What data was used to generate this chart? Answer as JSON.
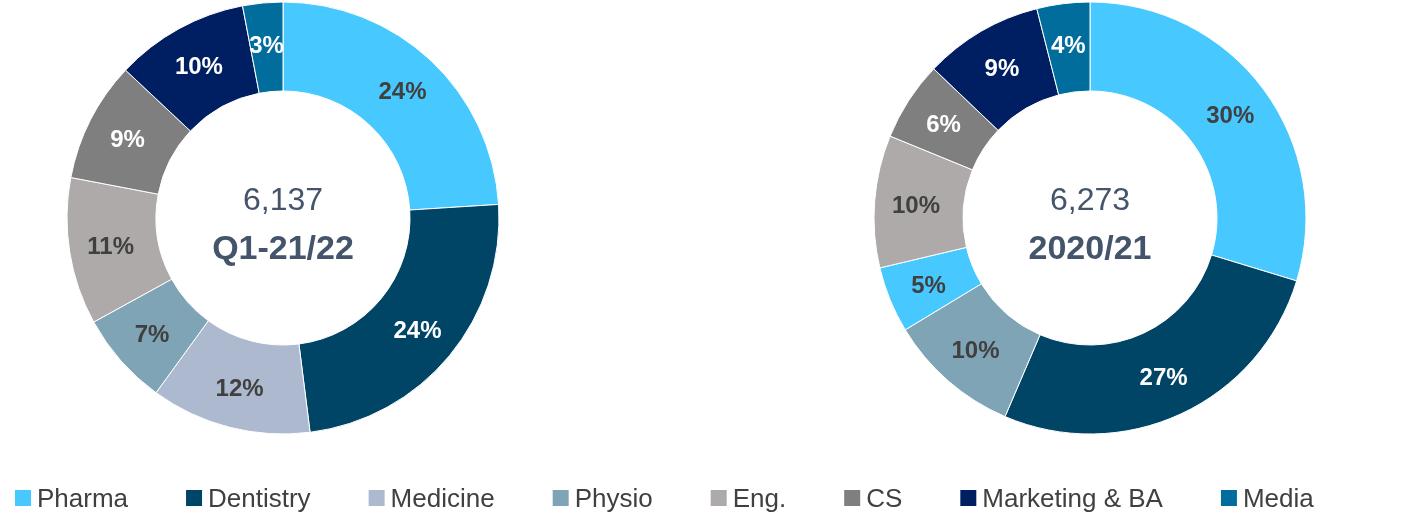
{
  "chart_data": [
    {
      "type": "donut",
      "title": "Q1-21/22",
      "annotations": [
        "6,137"
      ],
      "categories": [
        "Pharma",
        "Dentistry",
        "Medicine",
        "Physio",
        "Eng.",
        "CS",
        "Marketing & BA",
        "Media"
      ],
      "values": [
        24,
        24,
        12,
        7,
        11,
        9,
        10,
        3
      ],
      "value_labels": [
        "24%",
        "24%",
        "12%",
        "7%",
        "11%",
        "9%",
        "10%",
        "3%"
      ],
      "colors": [
        "#47c8ff",
        "#004566",
        "#adb9cf",
        "#7fa4b5",
        "#aeaaaa",
        "#7f7f7f",
        "#001e62",
        "#006d9c"
      ],
      "legend": "bottom"
    },
    {
      "type": "donut",
      "title": "2020/21",
      "annotations": [
        "6,273"
      ],
      "categories": [
        null,
        null,
        null,
        null,
        null,
        null,
        null,
        null
      ],
      "values": [
        30,
        27,
        10,
        5,
        10,
        6,
        9,
        4
      ],
      "value_labels": [
        "30%",
        "27%",
        "10%",
        "5%",
        "10%",
        "6%",
        "9%",
        "4%"
      ],
      "colors": [
        "#47c8ff",
        "#004566",
        "#7fa4b5",
        "#47c8ff",
        "#aeaaaa",
        "#7f7f7f",
        "#001e62",
        "#006d9c"
      ]
    }
  ]
}
